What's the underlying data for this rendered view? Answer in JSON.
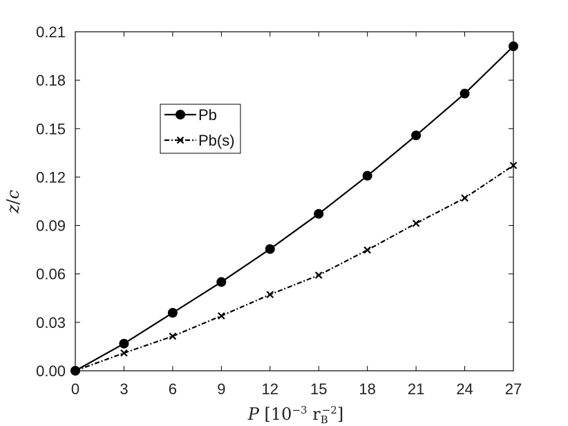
{
  "chart_data": {
    "type": "line",
    "x": [
      0,
      3,
      6,
      9,
      12,
      15,
      18,
      21,
      24,
      27
    ],
    "xlim": [
      0,
      27
    ],
    "ylim": [
      0,
      0.21
    ],
    "xticks": [
      "0",
      "3",
      "6",
      "9",
      "12",
      "15",
      "18",
      "21",
      "24",
      "27"
    ],
    "yticks": [
      "0.00",
      "0.03",
      "0.06",
      "0.09",
      "0.12",
      "0.15",
      "0.18",
      "0.21"
    ],
    "xlabel": {
      "main": "P [10",
      "exp": "−3",
      "unit": "r",
      "sub": "B",
      "sup": "−2",
      "close": "]"
    },
    "ylabel": "z/c",
    "grid": false,
    "legend_position": "upper-left-center",
    "series": [
      {
        "name": "Pb",
        "marker": "circle",
        "style": "solid",
        "color": "#000000",
        "values": [
          0.0,
          0.0168,
          0.0359,
          0.055,
          0.0754,
          0.0972,
          0.1208,
          0.1458,
          0.1717,
          0.201
        ]
      },
      {
        "name": "Pb(s)",
        "marker": "x",
        "style": "dashdot",
        "color": "#000000",
        "values": [
          0.0,
          0.011,
          0.0214,
          0.034,
          0.0472,
          0.0592,
          0.0748,
          0.0913,
          0.107,
          0.1272
        ]
      }
    ]
  }
}
